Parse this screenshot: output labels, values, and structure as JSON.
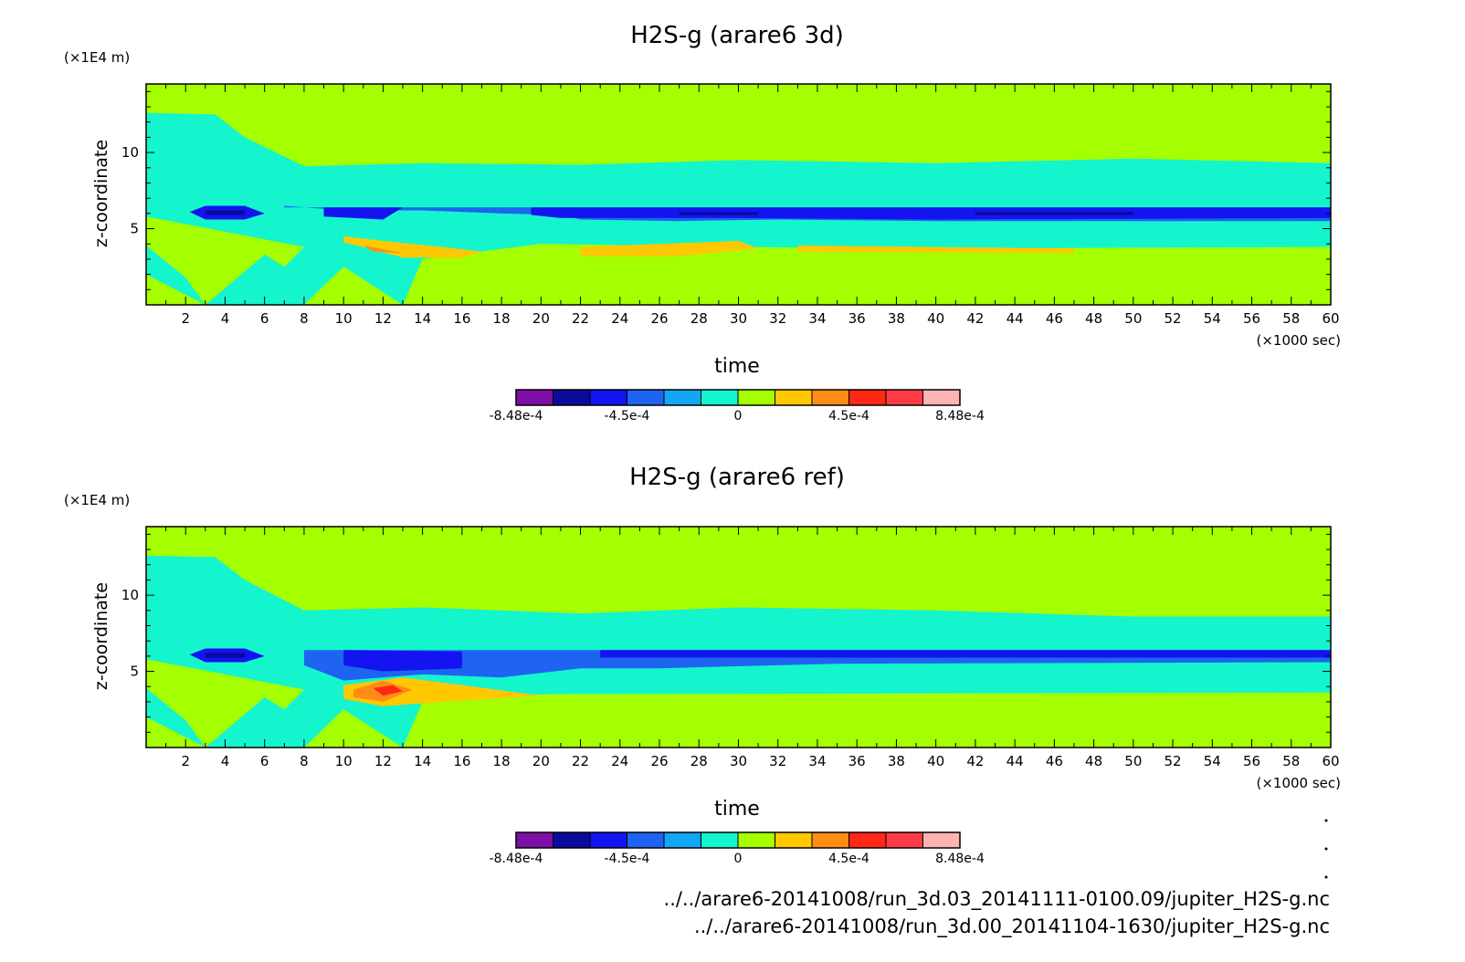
{
  "palette": [
    "#7d0fa6",
    "#0a0a9c",
    "#1414f0",
    "#1e64f0",
    "#14a5f5",
    "#14f5cd",
    "#a5ff00",
    "#ffc800",
    "#ff8c14",
    "#ff2814",
    "#ff3c46",
    "#ffb4b4"
  ],
  "colorbar_ticks": [
    "-8.48e-4",
    "-4.5e-4",
    "0",
    "4.5e-4",
    "8.48e-4"
  ],
  "chart_data": [
    {
      "type": "heatmap",
      "title": "H2S-g (arare6 3d)",
      "xlabel": "time",
      "ylabel": "z-coordinate",
      "x_unit": "(×1000 sec)",
      "y_unit": "(×1E4 m)",
      "xlim": [
        0,
        60
      ],
      "ylim": [
        0,
        14.5
      ],
      "x_ticks": [
        2,
        4,
        6,
        8,
        10,
        12,
        14,
        16,
        18,
        20,
        22,
        24,
        26,
        28,
        30,
        32,
        34,
        36,
        38,
        40,
        42,
        44,
        46,
        48,
        50,
        52,
        54,
        56,
        58,
        60
      ],
      "y_ticks": [
        5,
        10
      ],
      "value_range": [
        -0.000848,
        0.000848
      ],
      "background_level": 6,
      "regions": [
        {
          "level": 5,
          "poly": [
            [
              0,
              2
            ],
            [
              3,
              0
            ],
            [
              8,
              0
            ],
            [
              10,
              2.5
            ],
            [
              13,
              0
            ],
            [
              14,
              3
            ],
            [
              20,
              4
            ],
            [
              30,
              3.8
            ],
            [
              40,
              3.7
            ],
            [
              60,
              3.8
            ],
            [
              60,
              9.3
            ],
            [
              50,
              9.6
            ],
            [
              40,
              9.3
            ],
            [
              30,
              9.5
            ],
            [
              22,
              9.2
            ],
            [
              14,
              9.3
            ],
            [
              8,
              9.1
            ],
            [
              5,
              11
            ],
            [
              3.5,
              12.5
            ],
            [
              0,
              12.6
            ]
          ]
        },
        {
          "level": 6,
          "poly": [
            [
              0,
              3.9
            ],
            [
              2,
              1.8
            ],
            [
              3,
              0
            ],
            [
              6,
              3.3
            ],
            [
              7,
              2.5
            ],
            [
              8,
              3.8
            ],
            [
              0,
              5.8
            ]
          ]
        },
        {
          "level": 3,
          "poly": [
            [
              7,
              6.5
            ],
            [
              10,
              6.2
            ],
            [
              14,
              6.2
            ],
            [
              18,
              6.0
            ],
            [
              21,
              5.9
            ],
            [
              22,
              5.6
            ],
            [
              27,
              5.5
            ],
            [
              32,
              5.6
            ],
            [
              40,
              5.5
            ],
            [
              50,
              5.5
            ],
            [
              60,
              5.5
            ],
            [
              60,
              6.4
            ],
            [
              7,
              6.4
            ]
          ]
        },
        {
          "level": 2,
          "poly": [
            [
              2.2,
              6.1
            ],
            [
              3,
              6.5
            ],
            [
              5,
              6.5
            ],
            [
              6,
              6.0
            ],
            [
              5,
              5.6
            ],
            [
              3,
              5.6
            ]
          ]
        },
        {
          "level": 2,
          "poly": [
            [
              9,
              6.4
            ],
            [
              13,
              6.4
            ],
            [
              12,
              5.6
            ],
            [
              9,
              5.8
            ]
          ]
        },
        {
          "level": 2,
          "poly": [
            [
              19.5,
              6.4
            ],
            [
              60,
              6.4
            ],
            [
              60,
              5.7
            ],
            [
              40,
              5.6
            ],
            [
              30,
              5.7
            ],
            [
              21,
              5.7
            ],
            [
              19.5,
              5.9
            ]
          ]
        },
        {
          "level": 1,
          "poly": [
            [
              3,
              6.2
            ],
            [
              5,
              6.2
            ],
            [
              5,
              5.9
            ],
            [
              3,
              5.9
            ]
          ]
        },
        {
          "level": 1,
          "poly": [
            [
              27,
              6.1
            ],
            [
              31,
              6.1
            ],
            [
              31,
              5.9
            ],
            [
              27,
              5.9
            ]
          ]
        },
        {
          "level": 1,
          "poly": [
            [
              42,
              6.1
            ],
            [
              50,
              6.1
            ],
            [
              50,
              5.9
            ],
            [
              42,
              5.9
            ]
          ]
        },
        {
          "level": 7,
          "poly": [
            [
              10,
              4.5
            ],
            [
              12,
              4.2
            ],
            [
              15,
              3.8
            ],
            [
              17,
              3.5
            ],
            [
              16,
              3.1
            ],
            [
              13,
              3.1
            ],
            [
              11,
              3.8
            ],
            [
              10,
              4.1
            ]
          ]
        },
        {
          "level": 8,
          "poly": [
            [
              11,
              3.9
            ],
            [
              13,
              3.4
            ],
            [
              11.5,
              3.5
            ]
          ]
        },
        {
          "level": 7,
          "poly": [
            [
              22,
              3.8
            ],
            [
              30,
              4.2
            ],
            [
              31,
              3.7
            ],
            [
              27,
              3.2
            ],
            [
              22,
              3.2
            ]
          ]
        },
        {
          "level": 7,
          "poly": [
            [
              33,
              3.9
            ],
            [
              47,
              3.7
            ],
            [
              47,
              3.4
            ],
            [
              33,
              3.5
            ]
          ]
        }
      ]
    },
    {
      "type": "heatmap",
      "title": "H2S-g (arare6 ref)",
      "xlabel": "time",
      "ylabel": "z-coordinate",
      "x_unit": "(×1000 sec)",
      "y_unit": "(×1E4 m)",
      "xlim": [
        0,
        60
      ],
      "ylim": [
        0,
        14.5
      ],
      "x_ticks": [
        2,
        4,
        6,
        8,
        10,
        12,
        14,
        16,
        18,
        20,
        22,
        24,
        26,
        28,
        30,
        32,
        34,
        36,
        38,
        40,
        42,
        44,
        46,
        48,
        50,
        52,
        54,
        56,
        58,
        60
      ],
      "y_ticks": [
        5,
        10
      ],
      "value_range": [
        -0.000848,
        0.000848
      ],
      "background_level": 6,
      "regions": [
        {
          "level": 5,
          "poly": [
            [
              0,
              2
            ],
            [
              3,
              0
            ],
            [
              8,
              0
            ],
            [
              10,
              2.5
            ],
            [
              13,
              0
            ],
            [
              14,
              3
            ],
            [
              20,
              3.5
            ],
            [
              60,
              3.6
            ],
            [
              60,
              8.6
            ],
            [
              50,
              8.6
            ],
            [
              40,
              9.0
            ],
            [
              30,
              9.2
            ],
            [
              22,
              8.8
            ],
            [
              14,
              9.2
            ],
            [
              8,
              9.0
            ],
            [
              5,
              11
            ],
            [
              3.5,
              12.5
            ],
            [
              0,
              12.6
            ]
          ]
        },
        {
          "level": 6,
          "poly": [
            [
              0,
              3.9
            ],
            [
              2,
              1.8
            ],
            [
              3,
              0
            ],
            [
              6,
              3.3
            ],
            [
              7,
              2.5
            ],
            [
              8,
              3.8
            ],
            [
              0,
              5.8
            ]
          ]
        },
        {
          "level": 3,
          "poly": [
            [
              8,
              6.4
            ],
            [
              8,
              5.4
            ],
            [
              10,
              4.4
            ],
            [
              14,
              4.8
            ],
            [
              18,
              4.6
            ],
            [
              22,
              5.2
            ],
            [
              26,
              5.2
            ],
            [
              35,
              5.5
            ],
            [
              60,
              5.6
            ],
            [
              60,
              6.4
            ]
          ]
        },
        {
          "level": 2,
          "poly": [
            [
              2.2,
              6.1
            ],
            [
              3,
              6.5
            ],
            [
              5,
              6.5
            ],
            [
              6,
              6.0
            ],
            [
              5,
              5.6
            ],
            [
              3,
              5.6
            ]
          ]
        },
        {
          "level": 2,
          "poly": [
            [
              10,
              6.4
            ],
            [
              16,
              6.3
            ],
            [
              16,
              5.2
            ],
            [
              12,
              5.0
            ],
            [
              10,
              5.4
            ]
          ]
        },
        {
          "level": 2,
          "poly": [
            [
              23,
              6.4
            ],
            [
              60,
              6.4
            ],
            [
              60,
              5.9
            ],
            [
              23,
              5.9
            ]
          ]
        },
        {
          "level": 1,
          "poly": [
            [
              3,
              6.2
            ],
            [
              5,
              6.2
            ],
            [
              5,
              5.9
            ],
            [
              3,
              5.9
            ]
          ]
        },
        {
          "level": 7,
          "poly": [
            [
              10,
              4.1
            ],
            [
              13,
              4.6
            ],
            [
              16,
              4.1
            ],
            [
              20,
              3.4
            ],
            [
              15,
              3.0
            ],
            [
              12,
              2.7
            ],
            [
              10,
              3.2
            ]
          ]
        },
        {
          "level": 8,
          "poly": [
            [
              10.5,
              3.8
            ],
            [
              12,
              4.4
            ],
            [
              13.5,
              3.8
            ],
            [
              12,
              3.0
            ],
            [
              10.5,
              3.3
            ]
          ]
        },
        {
          "level": 9,
          "poly": [
            [
              11.5,
              3.9
            ],
            [
              12.5,
              4.1
            ],
            [
              13,
              3.7
            ],
            [
              12,
              3.4
            ]
          ]
        }
      ]
    }
  ],
  "footer": {
    "file1": "../../arare6-20141008/run_3d.03_20141111-0100.09/jupiter_H2S-g.nc",
    "file2": "../../arare6-20141008/run_3d.00_20141104-1630/jupiter_H2S-g.nc"
  }
}
